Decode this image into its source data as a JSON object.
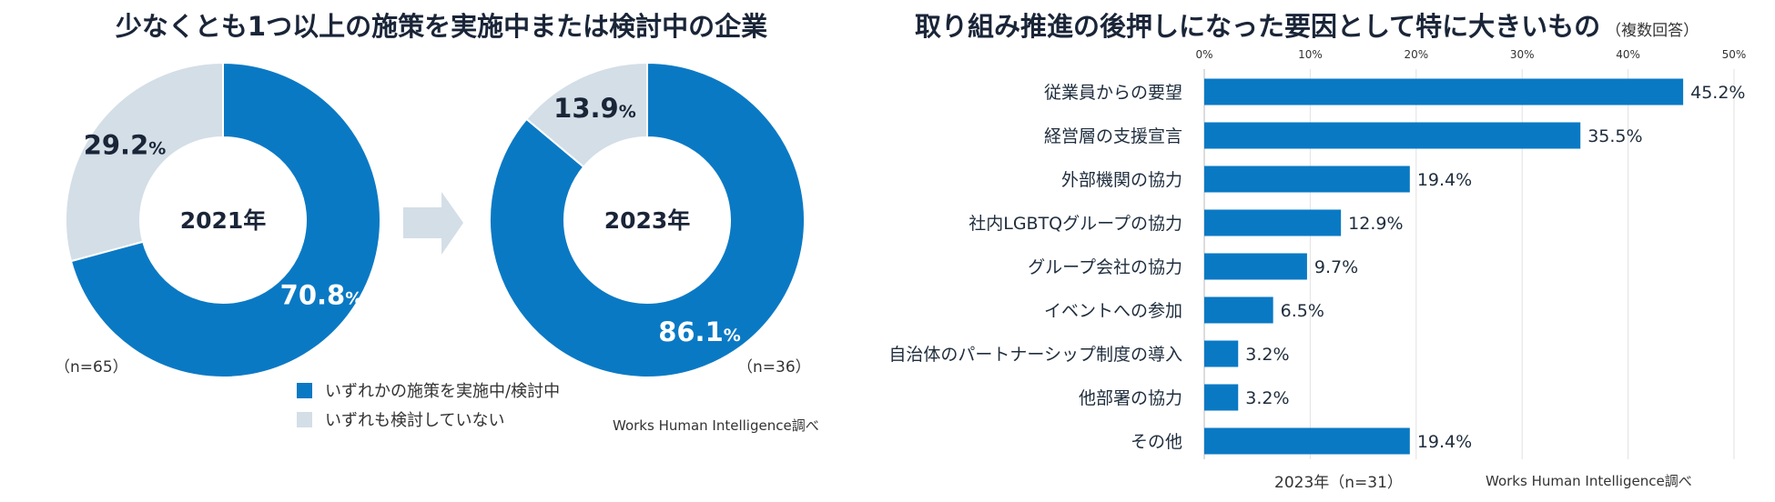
{
  "left": {
    "title": "少なくとも1つ以上の施策を実施中または検討中の企業",
    "donuts": [
      {
        "year_label": "2021年",
        "n_label": "（n=65）",
        "slices": [
          {
            "label": "70.8%",
            "value": 70.8
          },
          {
            "label": "29.2%",
            "value": 29.2
          }
        ]
      },
      {
        "year_label": "2023年",
        "n_label": "（n=36）",
        "slices": [
          {
            "label": "86.1%",
            "value": 86.1
          },
          {
            "label": "13.9%",
            "value": 13.9
          }
        ]
      }
    ],
    "legend": [
      {
        "label": "いずれかの施策を実施中/検討中",
        "color": "#0a79c4"
      },
      {
        "label": "いずれも検討していない",
        "color": "#d3dee7"
      }
    ],
    "credit": "Works Human Intelligence調べ"
  },
  "right": {
    "title": "取り組み推進の後押しになった要因として特に大きいもの",
    "title_note": "（複数回答）",
    "footer_label": "2023年（n=31）",
    "credit": "Works Human Intelligence調べ"
  },
  "colors": {
    "primary": "#0a79c4",
    "secondary": "#d3dee7",
    "arrow": "#d3dee7"
  },
  "chart_data": [
    {
      "type": "pie",
      "title": "2021年",
      "categories": [
        "いずれかの施策を実施中/検討中",
        "いずれも検討していない"
      ],
      "values": [
        70.8,
        29.2
      ]
    },
    {
      "type": "pie",
      "title": "2023年",
      "categories": [
        "いずれかの施策を実施中/検討中",
        "いずれも検討していない"
      ],
      "values": [
        86.1,
        13.9
      ]
    },
    {
      "type": "bar",
      "orientation": "horizontal",
      "categories": [
        "従業員からの要望",
        "経営層の支援宣言",
        "外部機関の協力",
        "社内LGBTQグループの協力",
        "グループ会社の協力",
        "イベントへの参加",
        "自治体のパートナーシップ制度の導入",
        "他部署の協力",
        "その他"
      ],
      "values": [
        45.2,
        35.5,
        19.4,
        12.9,
        9.7,
        6.5,
        3.2,
        3.2,
        19.4
      ],
      "value_labels": [
        "45.2%",
        "35.5%",
        "19.4%",
        "12.9%",
        "9.7%",
        "6.5%",
        "3.2%",
        "3.2%",
        "19.4%"
      ],
      "xlim": [
        0,
        50
      ],
      "x_ticks": [
        0,
        10,
        20,
        30,
        40,
        50
      ],
      "x_tick_labels": [
        "0%",
        "10%",
        "20%",
        "30%",
        "40%",
        "50%"
      ],
      "grid": true
    }
  ]
}
